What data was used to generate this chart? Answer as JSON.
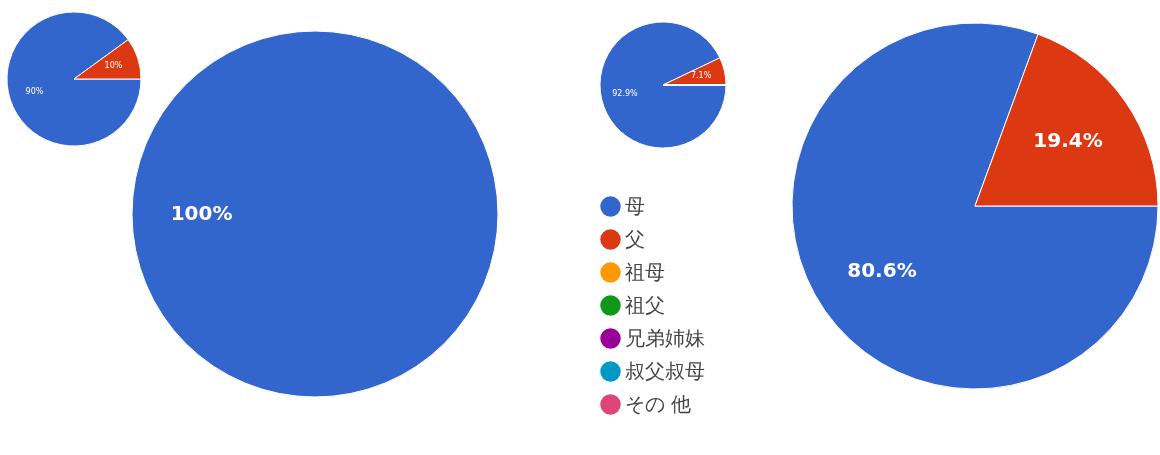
{
  "chart_data": [
    {
      "type": "pie",
      "categories": [
        null,
        null
      ],
      "values": [
        90,
        10
      ],
      "colors": [
        "#3366cc",
        "#dc3912"
      ],
      "value_labels": [
        "90%",
        "10%"
      ],
      "legend": false
    },
    {
      "type": "pie",
      "categories": [
        null
      ],
      "values": [
        100
      ],
      "colors": [
        "#3366cc"
      ],
      "value_labels": [
        "100%"
      ],
      "legend": false
    },
    {
      "type": "pie",
      "categories": [
        "母",
        "父",
        "祖母",
        "祖父",
        "兄弟姉妹",
        "叔父叔母",
        "その 他"
      ],
      "values": [
        92.9,
        7.1,
        0,
        0,
        0,
        0,
        0
      ],
      "colors": [
        "#3366cc",
        "#dc3912",
        "#ff9900",
        "#109618",
        "#990099",
        "#0099c6",
        "#dd4477"
      ],
      "value_labels": [
        "92.9%",
        "7.1%",
        null,
        null,
        null,
        null,
        null
      ],
      "legend": "bottom"
    },
    {
      "type": "pie",
      "categories": [
        null,
        null
      ],
      "values": [
        80.6,
        19.4
      ],
      "colors": [
        "#3366cc",
        "#dc3912"
      ],
      "value_labels": [
        "80.6%",
        "19.4%"
      ],
      "legend": false
    }
  ]
}
